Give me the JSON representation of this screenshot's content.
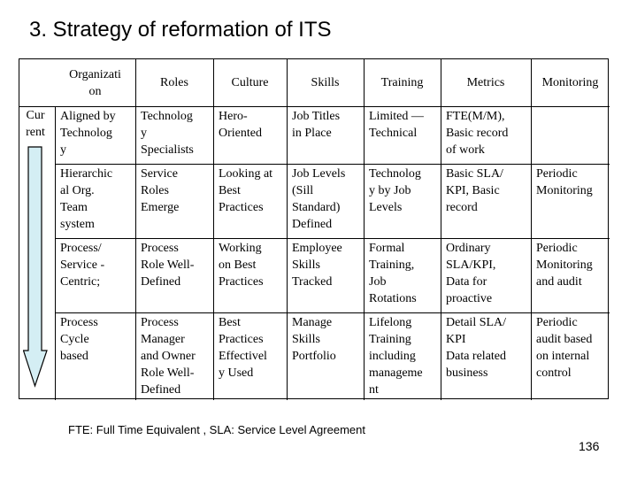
{
  "title": "3. Strategy of reformation of ITS",
  "headers": [
    "Organizati\non",
    "Roles",
    "Culture",
    "Skills",
    "Training",
    "Metrics",
    "Monitoring"
  ],
  "row_label": "Cur\nrent",
  "rows": [
    [
      "Aligned by\nTechnolog\ny",
      "Technolog\ny\nSpecialists",
      "Hero-\nOriented",
      "Job Titles\nin Place",
      "Limited —\nTechnical",
      "FTE(M/M),\nBasic record\nof work",
      ""
    ],
    [
      "Hierarchic\nal Org.\nTeam\nsystem",
      "Service\nRoles\nEmerge",
      "Looking at\nBest\nPractices",
      "Job Levels\n(Sill\nStandard)\nDefined",
      "Technolog\ny by Job\nLevels",
      "Basic SLA/\nKPI, Basic\nrecord",
      "Periodic\nMonitoring"
    ],
    [
      "Process/\nService -\nCentric;",
      "Process\nRole Well-\nDefined",
      "Working\non Best\nPractices",
      "Employee\nSkills\nTracked",
      "Formal\nTraining,\nJob\nRotations",
      "Ordinary\nSLA/KPI,\nData for\nproactive",
      "Periodic\nMonitoring\nand audit"
    ],
    [
      "Process\nCycle\nbased",
      "Process\nManager\nand Owner\nRole Well-\nDefined",
      "Best\nPractices\nEffectivel\ny Used",
      "Manage\nSkills\nPortfolio",
      "Lifelong\nTraining\nincluding\nmanageme\nnt",
      "Detail SLA/\nKPI\nData related\nbusiness",
      "Periodic\naudit based\non internal\ncontrol"
    ]
  ],
  "footnote": "FTE: Full Time Equivalent , SLA: Service Level Agreement",
  "page_number": "136",
  "arrow_fill": "#d4eef4",
  "grid_color": "#000000"
}
